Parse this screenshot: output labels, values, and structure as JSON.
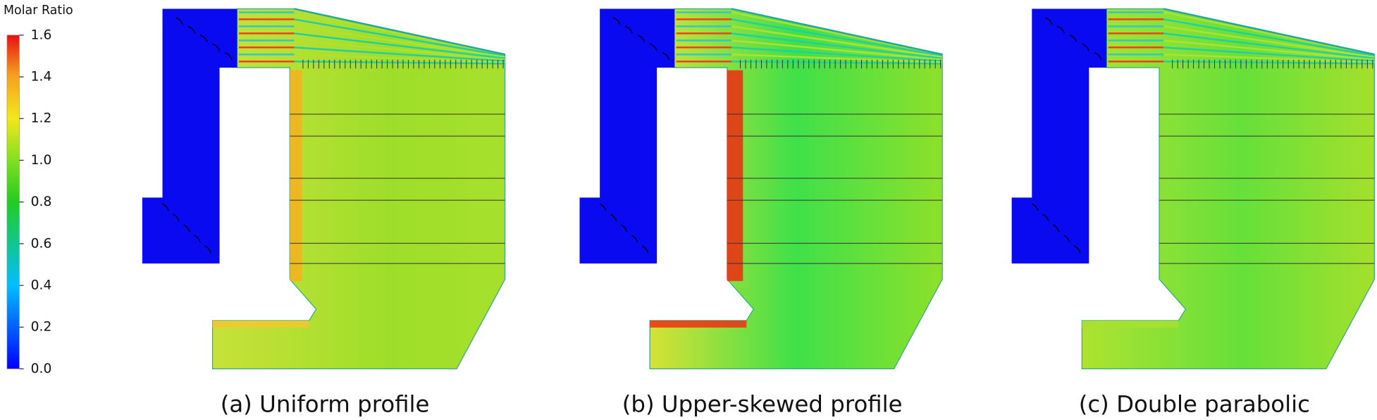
{
  "colorbar": {
    "title": "Molar Ratio",
    "lim": [
      0,
      1.6
    ],
    "ticks": [
      {
        "value": 0,
        "label": "0.0"
      },
      0.2,
      0.4,
      0.6,
      0.8,
      {
        "value": 1,
        "label": "1.0"
      },
      1.2,
      1.4,
      1.6
    ]
  },
  "panels": [
    {
      "caption": "(a) Uniform profile"
    },
    {
      "caption": "(b) Upper-skewed profile"
    },
    {
      "caption": "(c) Double parabolic"
    }
  ]
}
